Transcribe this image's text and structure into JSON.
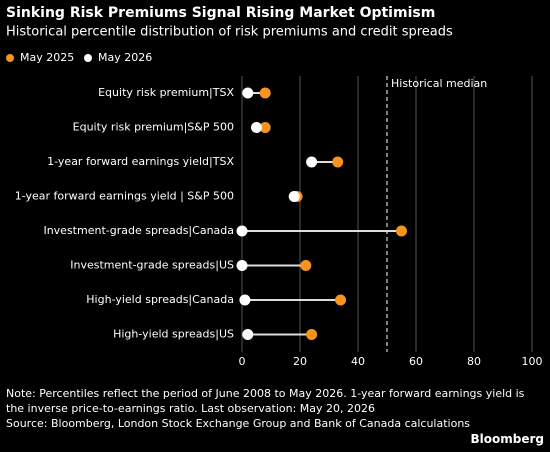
{
  "chart_data": {
    "type": "dumbbell",
    "title": "Sinking Risk Premiums Signal Rising Market Optimism",
    "subtitle": "Historical percentile distribution of risk premiums and credit spreads",
    "categories": [
      "Equity risk premium|TSX",
      "Equity risk premium|S&P 500",
      "1-year forward earnings yield|TSX",
      "1-year forward earnings yield | S&P 500",
      "Investment-grade spreads|Canada",
      "Investment-grade spreads|US",
      "High-yield spreads|Canada",
      "High-yield spreads|US"
    ],
    "series": [
      {
        "name": "May 2025",
        "color": "#f7941d",
        "values": [
          8,
          8,
          33,
          19,
          55,
          22,
          34,
          24
        ]
      },
      {
        "name": "May 2026",
        "color": "#ffffff",
        "values": [
          2,
          5,
          24,
          18,
          0,
          0,
          1,
          2
        ]
      }
    ],
    "xlim": [
      0,
      100
    ],
    "xticks": [
      0,
      20,
      40,
      60,
      80,
      100
    ],
    "grid": true,
    "reference_line": {
      "value": 50,
      "label": "Historical median"
    },
    "note": "Note: Percentiles reflect the period of June 2008 to May 2026. 1-year forward earnings yield is the inverse price-to-earnings ratio. Last observation: May 20, 2026",
    "source": "Source: Bloomberg, London Stock Exchange Group and Bank of Canada calculations",
    "brand": "Bloomberg"
  }
}
